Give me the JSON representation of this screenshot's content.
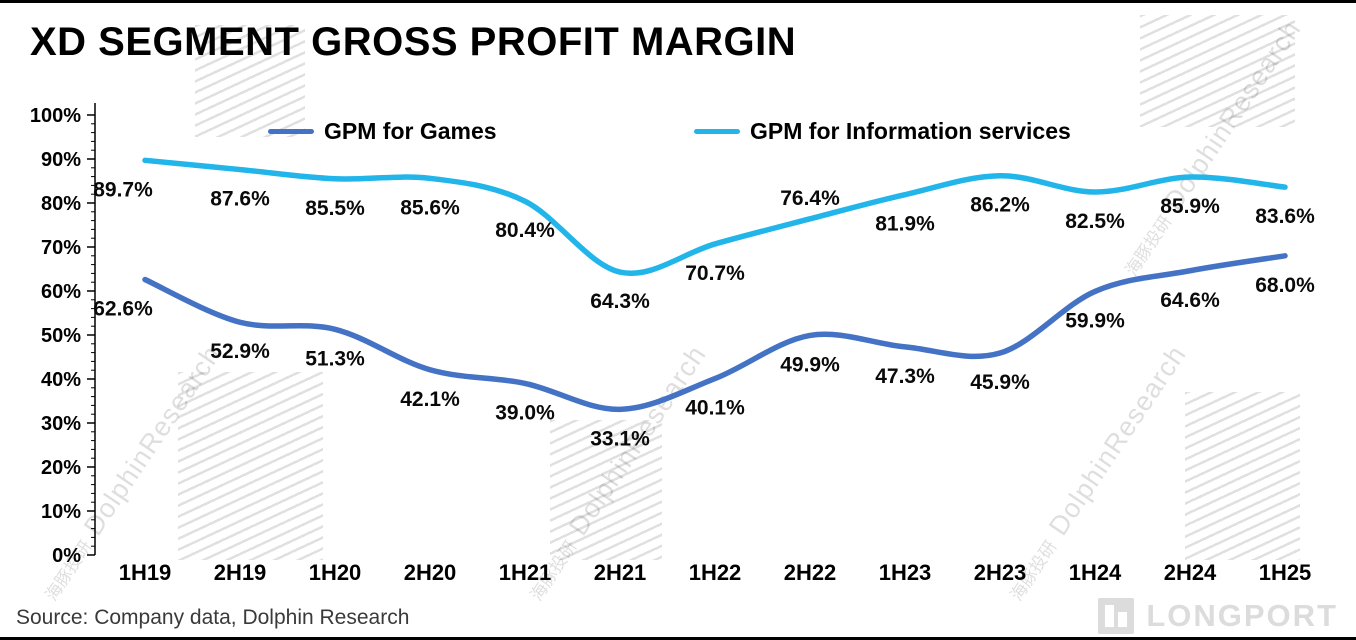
{
  "page": {
    "title": "XD SEGMENT GROSS PROFIT MARGIN",
    "source": "Source: Company data, Dolphin Research",
    "watermark": {
      "cn": "海豚投研",
      "en": "DolphinResearch"
    },
    "logo_text": "LONGPORT"
  },
  "chart_data": {
    "type": "line",
    "title": "XD SEGMENT GROSS PROFIT MARGIN",
    "categories": [
      "1H19",
      "2H19",
      "1H20",
      "2H20",
      "1H21",
      "2H21",
      "1H22",
      "2H22",
      "1H23",
      "2H23",
      "1H24",
      "2H24",
      "1H25"
    ],
    "series": [
      {
        "name": "GPM for Games",
        "color": "#4472C4",
        "values": [
          62.6,
          52.9,
          51.3,
          42.1,
          39.0,
          33.1,
          40.1,
          49.9,
          47.3,
          45.9,
          59.9,
          64.6,
          68.0
        ]
      },
      {
        "name": "GPM for Information services",
        "color": "#22B5EA",
        "values": [
          89.7,
          87.6,
          85.5,
          85.6,
          80.4,
          64.3,
          70.7,
          76.4,
          81.9,
          86.2,
          82.5,
          85.9,
          83.6
        ]
      }
    ],
    "ylim": [
      0,
      100
    ],
    "ytick_step": 10,
    "ytick_minor_step": 2,
    "ylabel_format": "percent",
    "legend_position": "top",
    "grid": false,
    "data_labels": true
  }
}
